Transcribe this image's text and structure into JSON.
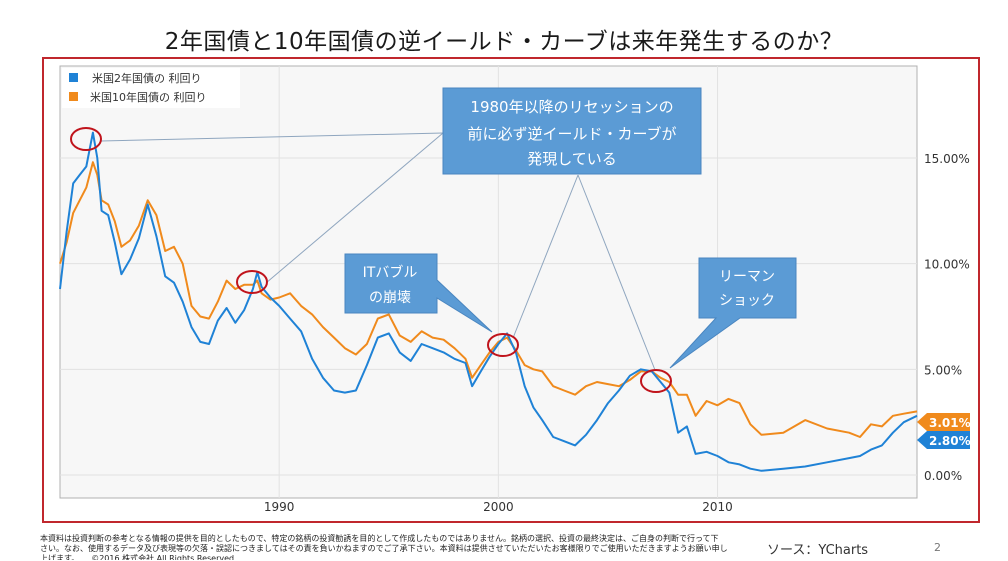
{
  "title": "2年国債と10年国債の逆イールド・カーブは来年発生するのか？",
  "callouts": {
    "main": [
      "1980年以降のリセッションの",
      "前に必ず逆イールド・カーブが",
      "発現している"
    ],
    "it_bubble": [
      "ITバブル",
      "の崩壊"
    ],
    "lehman": [
      "リーマン",
      "ショック"
    ]
  },
  "footer": {
    "disclaimer_lines": [
      "本資料は投資判断の参考となる情報の提供を目的としたもので、特定の銘柄の投資勧誘を目的として作成したものではありません。銘柄の選択、投資の最終決定は、ご自身の判断で行って下",
      "さい。なお、使用するデータ及び表現等の欠落・誤認につきましてはその責を負いかねますのでご了承下さい。本資料は提供させていただいたお客様限りでご使用いただきますようお願い申し",
      "上げます。　　©2016 株式会社 All Rights Reserved"
    ],
    "source": "ソース：YCharts",
    "page": "2"
  },
  "colors": {
    "series2y": "#1f82d6",
    "series10y": "#f08a1c",
    "frame": "#c0272d",
    "callout": "#5b9bd5",
    "circle": "#c0141c"
  },
  "chart_data": {
    "type": "line",
    "title": "",
    "xlabel": "",
    "ylabel": "",
    "xlim": [
      1980,
      2019.1
    ],
    "ylim": [
      -0.5,
      20
    ],
    "x_ticks": [
      "1990",
      "2000",
      "2010"
    ],
    "x_tick_values": [
      1990,
      2000,
      2010
    ],
    "y_ticks": [
      "0.00%",
      "5.00%",
      "10.00%",
      "15.00%"
    ],
    "y_tick_values": [
      0,
      5,
      10,
      15
    ],
    "grid": true,
    "legend": "top-left",
    "end_labels": {
      "series10y": "3.01%",
      "series2y": "2.80%"
    },
    "series": [
      {
        "name": "米国2年国債の 利回り",
        "key": "series2y",
        "x": [
          1980.0,
          1980.3,
          1980.6,
          1980.9,
          1981.2,
          1981.5,
          1981.7,
          1981.9,
          1982.2,
          1982.5,
          1982.8,
          1983.2,
          1983.6,
          1984.0,
          1984.4,
          1984.8,
          1985.2,
          1985.6,
          1986.0,
          1986.4,
          1986.8,
          1987.2,
          1987.6,
          1988.0,
          1988.4,
          1988.8,
          1989.0,
          1989.2,
          1989.6,
          1990.0,
          1990.5,
          1991.0,
          1991.5,
          1992.0,
          1992.5,
          1993.0,
          1993.5,
          1994.0,
          1994.5,
          1995.0,
          1995.5,
          1996.0,
          1996.5,
          1997.0,
          1997.5,
          1998.0,
          1998.5,
          1998.8,
          1999.2,
          1999.6,
          2000.0,
          2000.4,
          2000.8,
          2001.2,
          2001.6,
          2002.0,
          2002.5,
          2003.0,
          2003.5,
          2004.0,
          2004.5,
          2005.0,
          2005.5,
          2006.0,
          2006.5,
          2007.0,
          2007.4,
          2007.8,
          2008.2,
          2008.6,
          2009.0,
          2009.5,
          2010.0,
          2010.5,
          2011.0,
          2011.5,
          2012.0,
          2013.0,
          2014.0,
          2015.0,
          2016.0,
          2016.5,
          2017.0,
          2017.5,
          2018.0,
          2018.5,
          2019.1
        ],
        "values": [
          8.8,
          11.5,
          13.8,
          14.2,
          14.6,
          16.2,
          15.0,
          12.5,
          12.3,
          11.0,
          9.5,
          10.2,
          11.2,
          12.8,
          11.3,
          9.4,
          9.1,
          8.2,
          7.0,
          6.3,
          6.2,
          7.3,
          7.9,
          7.2,
          7.8,
          8.8,
          9.6,
          8.9,
          8.4,
          8.0,
          7.4,
          6.8,
          5.5,
          4.6,
          4.0,
          3.9,
          4.0,
          5.2,
          6.5,
          6.7,
          5.8,
          5.4,
          6.2,
          6.0,
          5.8,
          5.5,
          5.3,
          4.2,
          4.9,
          5.6,
          6.2,
          6.7,
          5.8,
          4.2,
          3.2,
          2.6,
          1.8,
          1.6,
          1.4,
          1.9,
          2.6,
          3.4,
          4.0,
          4.7,
          5.0,
          4.9,
          4.4,
          3.9,
          2.0,
          2.3,
          1.0,
          1.1,
          0.9,
          0.6,
          0.5,
          0.3,
          0.2,
          0.3,
          0.4,
          0.6,
          0.8,
          0.9,
          1.2,
          1.4,
          2.0,
          2.5,
          2.8
        ]
      },
      {
        "name": "米国10年国債の 利回り",
        "key": "series10y",
        "x": [
          1980.0,
          1980.3,
          1980.6,
          1980.9,
          1981.2,
          1981.5,
          1981.7,
          1981.9,
          1982.2,
          1982.5,
          1982.8,
          1983.2,
          1983.6,
          1984.0,
          1984.4,
          1984.8,
          1985.2,
          1985.6,
          1986.0,
          1986.4,
          1986.8,
          1987.2,
          1987.6,
          1988.0,
          1988.4,
          1988.8,
          1989.0,
          1989.2,
          1989.6,
          1990.0,
          1990.5,
          1991.0,
          1991.5,
          1992.0,
          1992.5,
          1993.0,
          1993.5,
          1994.0,
          1994.5,
          1995.0,
          1995.5,
          1996.0,
          1996.5,
          1997.0,
          1997.5,
          1998.0,
          1998.5,
          1998.8,
          1999.2,
          1999.6,
          2000.0,
          2000.4,
          2000.8,
          2001.2,
          2001.6,
          2002.0,
          2002.5,
          2003.0,
          2003.5,
          2004.0,
          2004.5,
          2005.0,
          2005.5,
          2006.0,
          2006.5,
          2007.0,
          2007.4,
          2007.8,
          2008.2,
          2008.6,
          2009.0,
          2009.5,
          2010.0,
          2010.5,
          2011.0,
          2011.5,
          2012.0,
          2013.0,
          2014.0,
          2015.0,
          2016.0,
          2016.5,
          2017.0,
          2017.5,
          2018.0,
          2018.5,
          2019.1
        ],
        "values": [
          10.0,
          11.0,
          12.4,
          13.0,
          13.6,
          14.8,
          14.2,
          13.0,
          12.8,
          12.0,
          10.8,
          11.1,
          11.8,
          13.0,
          12.3,
          10.6,
          10.8,
          10.0,
          8.0,
          7.5,
          7.4,
          8.2,
          9.2,
          8.8,
          9.0,
          9.0,
          9.2,
          8.6,
          8.3,
          8.4,
          8.6,
          8.0,
          7.6,
          7.0,
          6.5,
          6.0,
          5.7,
          6.2,
          7.4,
          7.6,
          6.6,
          6.3,
          6.8,
          6.5,
          6.4,
          6.0,
          5.5,
          4.6,
          5.2,
          5.8,
          6.3,
          6.5,
          5.9,
          5.2,
          5.0,
          4.9,
          4.2,
          4.0,
          3.8,
          4.2,
          4.4,
          4.3,
          4.2,
          4.5,
          4.9,
          4.9,
          4.6,
          4.4,
          3.8,
          3.8,
          2.8,
          3.5,
          3.3,
          3.6,
          3.4,
          2.4,
          1.9,
          2.0,
          2.6,
          2.2,
          2.0,
          1.8,
          2.4,
          2.3,
          2.8,
          2.9,
          3.01
        ]
      }
    ]
  }
}
